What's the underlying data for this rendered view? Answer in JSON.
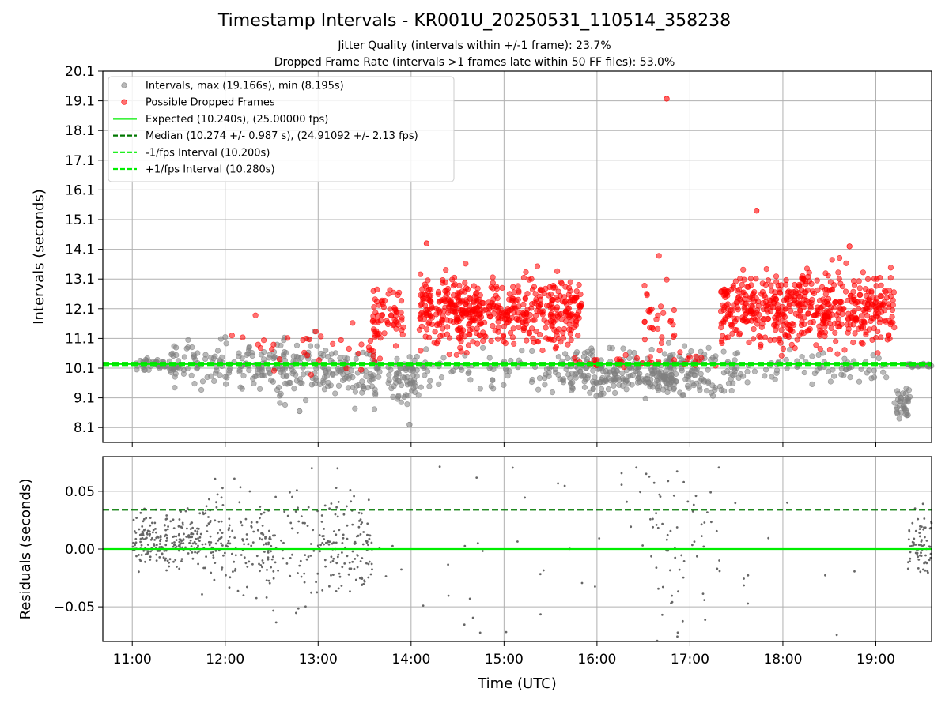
{
  "chart_data": [
    {
      "type": "scatter",
      "title": "Timestamp Intervals - KR001U_20250531_110514_358238",
      "subtitles": [
        "Jitter Quality (intervals within +/-1 frame): 23.7%",
        "Dropped Frame Rate (intervals >1 frames late within 50 FF files): 53.0%"
      ],
      "xlabel": "",
      "ylabel": "Intervals (seconds)",
      "xlim": [
        "10:41",
        "19:36"
      ],
      "ylim": [
        7.6,
        20.1
      ],
      "x_tick_labels": [
        "11:00",
        "12:00",
        "13:00",
        "14:00",
        "15:00",
        "16:00",
        "17:00",
        "18:00",
        "19:00"
      ],
      "y_ticks": [
        8.1,
        9.1,
        10.1,
        11.1,
        12.1,
        13.1,
        14.1,
        15.1,
        16.1,
        17.1,
        18.1,
        19.1,
        20.1
      ],
      "grid": true,
      "legend_position": "top-left",
      "series": [
        {
          "name": "Intervals, max (19.166s), min (8.195s)",
          "kind": "scatter",
          "color": "#808080"
        },
        {
          "name": "Possible Dropped Frames",
          "kind": "scatter",
          "color": "#ff0000"
        },
        {
          "name": "Expected (10.240s), (25.00000 fps)",
          "kind": "hline",
          "value": 10.24,
          "color": "#00ee00",
          "style": "solid"
        },
        {
          "name": "Median (10.274 +/- 0.987 s), (24.91092 +/- 2.13 fps)",
          "kind": "hline",
          "value": 10.274,
          "color": "#007700",
          "style": "dashed"
        },
        {
          "name": "-1/fps Interval (10.200s)",
          "kind": "hline",
          "value": 10.2,
          "color": "#00ee00",
          "style": "dashed"
        },
        {
          "name": "+1/fps Interval (10.280s)",
          "kind": "hline",
          "value": 10.28,
          "color": "#00ee00",
          "style": "dashed"
        }
      ],
      "notable_points": [
        {
          "x": "16:45",
          "y": 19.17,
          "series": "Possible Dropped Frames"
        },
        {
          "x": "17:43",
          "y": 15.4,
          "series": "Possible Dropped Frames"
        },
        {
          "x": "14:10",
          "y": 14.3,
          "series": "Possible Dropped Frames"
        },
        {
          "x": "18:43",
          "y": 14.2,
          "series": "Possible Dropped Frames"
        },
        {
          "x": "13:59",
          "y": 8.2,
          "series": "Intervals"
        },
        {
          "x": "12:48",
          "y": 8.65,
          "series": "Intervals"
        },
        {
          "x": "19:20",
          "y": 8.6,
          "series": "Intervals"
        }
      ],
      "clusters": {
        "gray": [
          {
            "x": [
              "11:00",
              "11:30"
            ],
            "mean": 10.2,
            "spread": 0.1,
            "n": 50
          },
          {
            "x": [
              "11:25",
              "12:40"
            ],
            "mean": 10.25,
            "spread": 0.38,
            "n": 140
          },
          {
            "x": [
              "12:35",
              "13:40"
            ],
            "mean": 10.0,
            "spread": 0.5,
            "n": 150
          },
          {
            "x": [
              "13:45",
              "14:05"
            ],
            "mean": 9.75,
            "spread": 0.4,
            "n": 60
          },
          {
            "x": [
              "14:00",
              "15:40"
            ],
            "mean": 10.0,
            "spread": 0.35,
            "n": 80
          },
          {
            "x": [
              "15:40",
              "16:50"
            ],
            "mean": 9.9,
            "spread": 0.35,
            "n": 230
          },
          {
            "x": [
              "16:45",
              "17:30"
            ],
            "mean": 9.95,
            "spread": 0.4,
            "n": 100
          },
          {
            "x": [
              "17:30",
              "19:10"
            ],
            "mean": 10.15,
            "spread": 0.25,
            "n": 70
          },
          {
            "x": [
              "19:12",
              "19:22"
            ],
            "mean": 8.9,
            "spread": 0.3,
            "n": 35
          },
          {
            "x": [
              "19:20",
              "19:36"
            ],
            "mean": 10.2,
            "spread": 0.04,
            "n": 25
          }
        ],
        "red": [
          {
            "x": [
              "12:00",
              "13:40"
            ],
            "mean": 10.9,
            "spread": 0.5,
            "n": 40
          },
          {
            "x": [
              "13:35",
              "13:55"
            ],
            "mean": 11.9,
            "spread": 0.5,
            "n": 60
          },
          {
            "x": [
              "14:05",
              "15:50"
            ],
            "mean": 12.0,
            "spread": 0.55,
            "n": 520
          },
          {
            "x": [
              "16:30",
              "16:50"
            ],
            "mean": 11.9,
            "spread": 0.7,
            "n": 30
          },
          {
            "x": [
              "17:20",
              "19:12"
            ],
            "mean": 12.1,
            "spread": 0.6,
            "n": 540
          },
          {
            "x": [
              "15:45",
              "17:20"
            ],
            "mean": 10.35,
            "spread": 0.1,
            "n": 30
          }
        ]
      }
    },
    {
      "type": "scatter",
      "xlabel": "Time (UTC)",
      "ylabel": "Residuals (seconds)",
      "xlim": [
        "10:41",
        "19:36"
      ],
      "ylim": [
        -0.08,
        0.08
      ],
      "x_tick_labels": [
        "11:00",
        "12:00",
        "13:00",
        "14:00",
        "15:00",
        "16:00",
        "17:00",
        "18:00",
        "19:00"
      ],
      "y_tick_labels": [
        "−0.05",
        "0.00",
        "0.05"
      ],
      "y_ticks": [
        -0.05,
        0.0,
        0.05
      ],
      "grid": true,
      "series": [
        {
          "name": "residuals",
          "kind": "scatter",
          "color": "#666666"
        },
        {
          "name": "expected",
          "kind": "hline",
          "value": 0.0,
          "color": "#00ee00",
          "style": "solid"
        },
        {
          "name": "median",
          "kind": "hline",
          "value": 0.034,
          "color": "#007700",
          "style": "dashed"
        }
      ],
      "clusters": [
        {
          "x": [
            "11:00",
            "11:45"
          ],
          "mean": 0.008,
          "spread": 0.012,
          "n": 230
        },
        {
          "x": [
            "11:45",
            "12:30"
          ],
          "mean": 0.006,
          "spread": 0.022,
          "n": 160
        },
        {
          "x": [
            "12:30",
            "13:00"
          ],
          "mean": 0.0,
          "spread": 0.03,
          "n": 60
        },
        {
          "x": [
            "13:00",
            "13:35"
          ],
          "mean": 0.004,
          "spread": 0.022,
          "n": 130
        },
        {
          "x": [
            "13:35",
            "16:30"
          ],
          "mean": 0.0,
          "spread": 0.06,
          "n": 50
        },
        {
          "x": [
            "16:30",
            "17:20"
          ],
          "mean": 0.0,
          "spread": 0.045,
          "n": 70
        },
        {
          "x": [
            "17:20",
            "19:10"
          ],
          "mean": 0.0,
          "spread": 0.07,
          "n": 15
        },
        {
          "x": [
            "19:20",
            "19:36"
          ],
          "mean": 0.005,
          "spread": 0.015,
          "n": 70
        }
      ]
    }
  ]
}
